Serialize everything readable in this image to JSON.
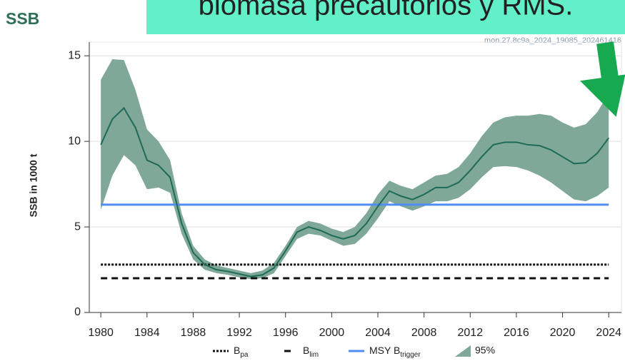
{
  "header": {
    "logo": "SSB",
    "banner": "biomasa precautorios y RMS.",
    "watermark": "mon.27.8c9a_2024_19085_202461416"
  },
  "chart_data": {
    "type": "line",
    "y_label": "SSB in 1000 t",
    "x": [
      1980,
      1981,
      1982,
      1983,
      1984,
      1985,
      1986,
      1987,
      1988,
      1989,
      1990,
      1991,
      1992,
      1993,
      1994,
      1995,
      1996,
      1997,
      1998,
      1999,
      2000,
      2001,
      2002,
      2003,
      2004,
      2005,
      2006,
      2007,
      2008,
      2009,
      2010,
      2011,
      2012,
      2013,
      2014,
      2015,
      2016,
      2017,
      2018,
      2019,
      2020,
      2021,
      2022,
      2023,
      2024
    ],
    "values": [
      9.8,
      11.3,
      11.95,
      10.8,
      8.9,
      8.6,
      7.9,
      5.2,
      3.5,
      2.8,
      2.5,
      2.4,
      2.25,
      2.1,
      2.2,
      2.6,
      3.6,
      4.7,
      5.0,
      4.8,
      4.5,
      4.3,
      4.5,
      5.2,
      6.2,
      7.1,
      6.8,
      6.6,
      6.9,
      7.3,
      7.3,
      7.6,
      8.3,
      9.1,
      9.8,
      9.95,
      9.95,
      9.8,
      9.75,
      9.5,
      9.1,
      8.7,
      8.75,
      9.3,
      10.2
    ],
    "color": "#1d6b57",
    "band": {
      "name": "95%",
      "color": "#7fa898",
      "lower": [
        6.0,
        8.0,
        9.2,
        8.6,
        7.2,
        7.3,
        7.0,
        4.6,
        3.1,
        2.5,
        2.3,
        2.2,
        2.05,
        1.95,
        2.0,
        2.3,
        3.3,
        4.3,
        4.6,
        4.5,
        4.2,
        3.9,
        4.0,
        4.6,
        5.5,
        6.5,
        6.2,
        5.95,
        6.2,
        6.5,
        6.5,
        6.7,
        7.2,
        7.9,
        8.5,
        8.55,
        8.5,
        8.3,
        8.0,
        7.6,
        7.1,
        6.6,
        6.5,
        6.8,
        7.3
      ],
      "upper": [
        13.6,
        14.8,
        14.75,
        13.0,
        10.7,
        10.0,
        8.9,
        5.8,
        3.9,
        3.1,
        2.75,
        2.6,
        2.45,
        2.3,
        2.45,
        2.9,
        3.9,
        5.0,
        5.35,
        5.2,
        4.9,
        4.7,
        5.0,
        5.8,
        6.9,
        7.7,
        7.4,
        7.2,
        7.6,
        8.0,
        8.1,
        8.5,
        9.3,
        10.3,
        11.1,
        11.4,
        11.5,
        11.5,
        11.6,
        11.5,
        11.1,
        10.8,
        11.0,
        11.7,
        12.8
      ]
    },
    "reference_lines": [
      {
        "name": "B",
        "name_sub": "pa",
        "value": 2.8,
        "color": "#111111",
        "style": "dotted"
      },
      {
        "name": "B",
        "name_sub": "lim",
        "value": 2.0,
        "color": "#111111",
        "style": "dashed"
      },
      {
        "name": "MSY B",
        "name_sub": "trigger",
        "value": 6.3,
        "color": "#4f8df5",
        "style": "solid"
      }
    ],
    "xlim": [
      1979,
      2025.1
    ],
    "ylim": [
      0,
      15.8
    ],
    "xticks": [
      1980,
      1984,
      1988,
      1992,
      1996,
      2000,
      2004,
      2008,
      2012,
      2016,
      2020,
      2024
    ],
    "yticks": [
      0,
      5,
      10,
      15
    ],
    "grid": true
  }
}
